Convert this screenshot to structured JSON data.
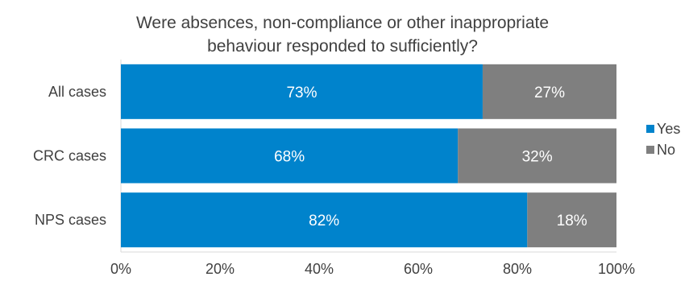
{
  "chart_data": {
    "type": "bar",
    "orientation": "horizontal",
    "stacked": true,
    "title": "Were absences, non-compliance or other inappropriate behaviour responded to sufficiently?",
    "title_lines": [
      "Were absences, non-compliance or other inappropriate",
      "behaviour responded to sufficiently?"
    ],
    "categories": [
      "All cases",
      "CRC cases",
      "NPS cases"
    ],
    "series": [
      {
        "name": "Yes",
        "values": [
          73,
          68,
          82
        ],
        "labels": [
          "73%",
          "68%",
          "82%"
        ],
        "color": "#0083CC"
      },
      {
        "name": "No",
        "values": [
          27,
          32,
          18
        ],
        "labels": [
          "27%",
          "32%",
          "18%"
        ],
        "color": "#7F7F7F"
      }
    ],
    "x_ticks": [
      "0%",
      "20%",
      "40%",
      "60%",
      "80%",
      "100%"
    ],
    "xlim": [
      0,
      100
    ],
    "xlabel": "",
    "ylabel": "",
    "grid": false,
    "legend_position": "right"
  }
}
